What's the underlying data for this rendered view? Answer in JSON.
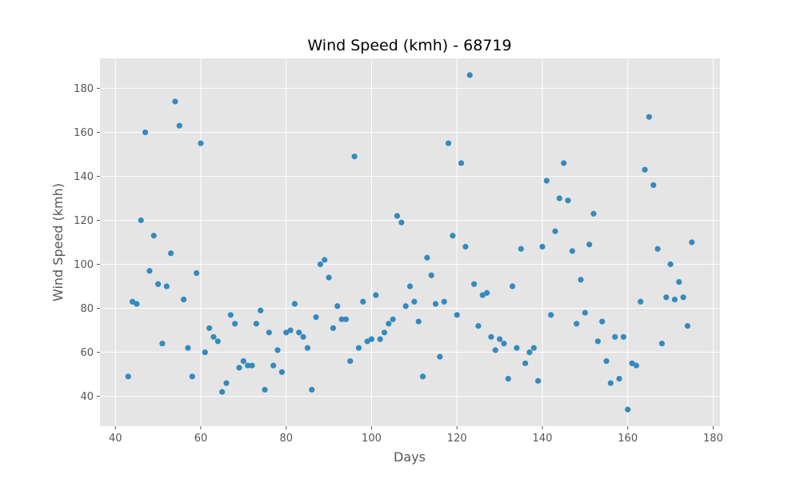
{
  "chart_data": {
    "type": "scatter",
    "title": "Wind Speed (kmh) - 68719",
    "xlabel": "Days",
    "ylabel": "Wind Speed (kmh)",
    "xlim": [
      36.4,
      181.6
    ],
    "ylim": [
      26.4,
      193.6
    ],
    "xticks": [
      40,
      60,
      80,
      100,
      120,
      140,
      160,
      180
    ],
    "yticks": [
      40,
      60,
      80,
      100,
      120,
      140,
      160,
      180
    ],
    "grid": true,
    "style": "ggplot",
    "colors": {
      "plot_bg": "#e5e5e5",
      "grid": "#ffffff",
      "marker": "#348abd",
      "text": "#555555",
      "title": "#000000"
    },
    "points": [
      [
        43,
        49
      ],
      [
        44,
        83
      ],
      [
        45,
        82
      ],
      [
        46,
        120
      ],
      [
        47,
        160
      ],
      [
        48,
        97
      ],
      [
        49,
        113
      ],
      [
        50,
        91
      ],
      [
        51,
        64
      ],
      [
        52,
        90
      ],
      [
        53,
        105
      ],
      [
        54,
        174
      ],
      [
        55,
        163
      ],
      [
        56,
        84
      ],
      [
        57,
        62
      ],
      [
        58,
        49
      ],
      [
        59,
        96
      ],
      [
        60,
        155
      ],
      [
        61,
        60
      ],
      [
        62,
        71
      ],
      [
        63,
        67
      ],
      [
        64,
        65
      ],
      [
        65,
        42
      ],
      [
        66,
        46
      ],
      [
        67,
        77
      ],
      [
        68,
        73
      ],
      [
        69,
        53
      ],
      [
        70,
        56
      ],
      [
        71,
        54
      ],
      [
        72,
        54
      ],
      [
        73,
        73
      ],
      [
        74,
        79
      ],
      [
        75,
        43
      ],
      [
        76,
        69
      ],
      [
        77,
        54
      ],
      [
        78,
        61
      ],
      [
        79,
        51
      ],
      [
        80,
        69
      ],
      [
        81,
        70
      ],
      [
        82,
        82
      ],
      [
        83,
        69
      ],
      [
        84,
        67
      ],
      [
        85,
        62
      ],
      [
        86,
        43
      ],
      [
        87,
        76
      ],
      [
        88,
        100
      ],
      [
        89,
        102
      ],
      [
        90,
        94
      ],
      [
        91,
        71
      ],
      [
        92,
        81
      ],
      [
        93,
        75
      ],
      [
        94,
        75
      ],
      [
        95,
        56
      ],
      [
        96,
        149
      ],
      [
        97,
        62
      ],
      [
        98,
        83
      ],
      [
        99,
        65
      ],
      [
        100,
        66
      ],
      [
        101,
        86
      ],
      [
        102,
        66
      ],
      [
        103,
        69
      ],
      [
        104,
        73
      ],
      [
        105,
        75
      ],
      [
        106,
        122
      ],
      [
        107,
        119
      ],
      [
        108,
        81
      ],
      [
        109,
        90
      ],
      [
        110,
        83
      ],
      [
        111,
        74
      ],
      [
        112,
        49
      ],
      [
        113,
        103
      ],
      [
        114,
        95
      ],
      [
        115,
        82
      ],
      [
        116,
        58
      ],
      [
        117,
        83
      ],
      [
        118,
        155
      ],
      [
        119,
        113
      ],
      [
        120,
        77
      ],
      [
        121,
        146
      ],
      [
        122,
        108
      ],
      [
        123,
        186
      ],
      [
        124,
        91
      ],
      [
        125,
        72
      ],
      [
        126,
        86
      ],
      [
        127,
        87
      ],
      [
        128,
        67
      ],
      [
        129,
        61
      ],
      [
        130,
        66
      ],
      [
        131,
        64
      ],
      [
        132,
        48
      ],
      [
        133,
        90
      ],
      [
        134,
        62
      ],
      [
        135,
        107
      ],
      [
        136,
        55
      ],
      [
        137,
        60
      ],
      [
        138,
        62
      ],
      [
        139,
        47
      ],
      [
        140,
        108
      ],
      [
        141,
        138
      ],
      [
        142,
        77
      ],
      [
        143,
        115
      ],
      [
        144,
        130
      ],
      [
        145,
        146
      ],
      [
        146,
        129
      ],
      [
        147,
        106
      ],
      [
        148,
        73
      ],
      [
        149,
        93
      ],
      [
        150,
        78
      ],
      [
        151,
        109
      ],
      [
        152,
        123
      ],
      [
        153,
        65
      ],
      [
        154,
        74
      ],
      [
        155,
        56
      ],
      [
        156,
        46
      ],
      [
        157,
        67
      ],
      [
        158,
        48
      ],
      [
        159,
        67
      ],
      [
        160,
        34
      ],
      [
        161,
        55
      ],
      [
        162,
        54
      ],
      [
        163,
        83
      ],
      [
        164,
        143
      ],
      [
        165,
        167
      ],
      [
        166,
        136
      ],
      [
        167,
        107
      ],
      [
        168,
        64
      ],
      [
        169,
        85
      ],
      [
        170,
        100
      ],
      [
        171,
        84
      ],
      [
        172,
        92
      ],
      [
        173,
        85
      ],
      [
        174,
        72
      ],
      [
        175,
        110
      ]
    ]
  }
}
